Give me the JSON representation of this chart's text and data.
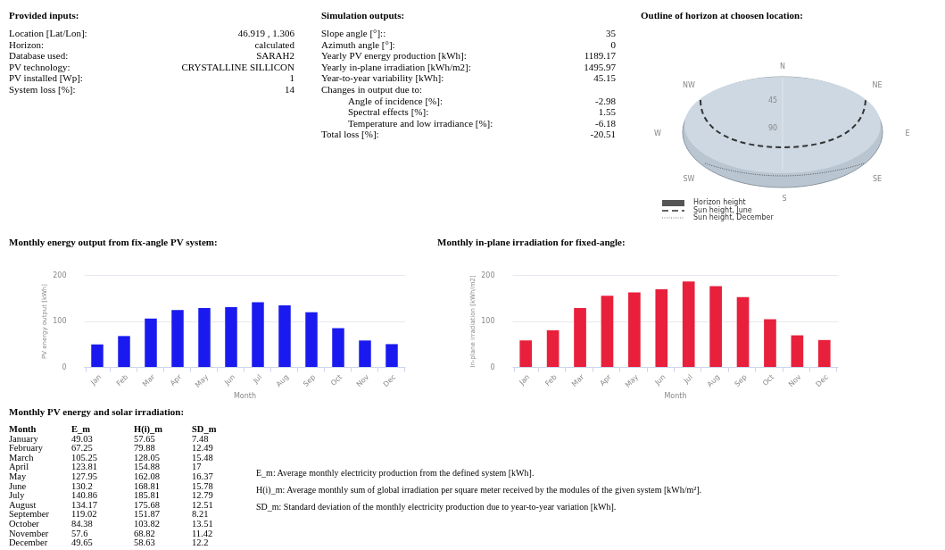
{
  "chart_data": [
    {
      "type": "other",
      "title": "Provided inputs:",
      "annotations": [
        "Location [Lat/Lon]:",
        "46.919 , 1.306",
        "Horizon:",
        "calculated",
        "Database used:",
        "SARAH2",
        "PV technology:",
        "CRYSTALLINE SILLICON",
        "PV installed [Wp]:",
        "1",
        "System loss [%]:",
        "14"
      ]
    },
    {
      "type": "other",
      "title": "Simulation outputs:",
      "annotations": [
        "Slope angle [°]::",
        "35",
        "Azimuth angle [°]:",
        "0",
        "Yearly PV energy production [kWh]:",
        "1189.17",
        "Yearly in-plane irradiation [kWh/m2]:",
        "1495.97",
        "Year-to-year variability [kWh]:",
        "45.15",
        "Changes in output due to:",
        "Angle of incidence [%]:",
        "-2.98",
        "Spectral effects [%]:",
        "1.55",
        "Temperature and low irradiance [%]:",
        "-6.18",
        "Total loss [%]:",
        "-20.51"
      ]
    },
    {
      "type": "other",
      "title": "Outline of horizon at choosen location:",
      "annotations": [
        "N",
        "NE",
        "E",
        "SE",
        "S",
        "SW",
        "W",
        "NW",
        "45",
        "90",
        "Horizon height",
        "Sun height, June",
        "Sun height, December"
      ]
    },
    {
      "type": "bar",
      "title": "Monthly energy output from fix-angle PV system:",
      "xlabel": "Month",
      "ylabel": "PV energy output [kWh]",
      "categories": [
        "Jan",
        "Feb",
        "Mar",
        "Apr",
        "May",
        "Jun",
        "Jul",
        "Aug",
        "Sep",
        "Oct",
        "Nov",
        "Dec"
      ],
      "values": [
        49.03,
        67.25,
        105.25,
        123.81,
        127.95,
        130.2,
        140.86,
        134.17,
        119.02,
        84.38,
        57.6,
        49.65
      ],
      "color": "#1a1af0",
      "ylim": [
        0,
        200
      ],
      "yticks": [
        0,
        100,
        200
      ],
      "grid": "y"
    },
    {
      "type": "bar",
      "title": "Monthly in-plane irradiation for fixed-angle:",
      "xlabel": "Month",
      "ylabel": "In-plane irradiation [kWh/m2]",
      "categories": [
        "Jan",
        "Feb",
        "Mar",
        "Apr",
        "May",
        "Jun",
        "Jul",
        "Aug",
        "Sep",
        "Oct",
        "Nov",
        "Dec"
      ],
      "values": [
        57.65,
        79.88,
        128.05,
        154.88,
        162.08,
        168.81,
        185.81,
        175.68,
        151.87,
        103.82,
        68.82,
        58.63
      ],
      "color": "#e8203c",
      "ylim": [
        0,
        200
      ],
      "yticks": [
        0,
        100,
        200
      ],
      "grid": "y"
    },
    {
      "type": "other",
      "title": "Monthly PV energy and solar irradiation:",
      "annotations": [
        "Month",
        "E_m",
        "H(i)_m",
        "SD_m",
        "January",
        "49.03",
        "57.65",
        "7.48",
        "February",
        "67.25",
        "79.88",
        "12.49",
        "March",
        "105.25",
        "128.05",
        "15.48",
        "April",
        "123.81",
        "154.88",
        "17",
        "May",
        "127.95",
        "162.08",
        "16.37",
        "June",
        "130.2",
        "168.81",
        "15.78",
        "July",
        "140.86",
        "185.81",
        "12.79",
        "August",
        "134.17",
        "175.68",
        "12.51",
        "September",
        "119.02",
        "151.87",
        "8.21",
        "October",
        "84.38",
        "103.82",
        "13.51",
        "November",
        "57.6",
        "68.82",
        "11.42",
        "December",
        "49.65",
        "58.63",
        "12.2"
      ]
    },
    {
      "type": "other",
      "annotations": [
        "E_m: Average monthly electricity production from the defined system [kWh].",
        "H(i)_m: Average monthly sum of global irradiation per square meter received by the modules of the given system [kWh/m²].",
        "SD_m: Standard deviation of the monthly electricity production due to year-to-year variation [kWh]."
      ]
    }
  ]
}
